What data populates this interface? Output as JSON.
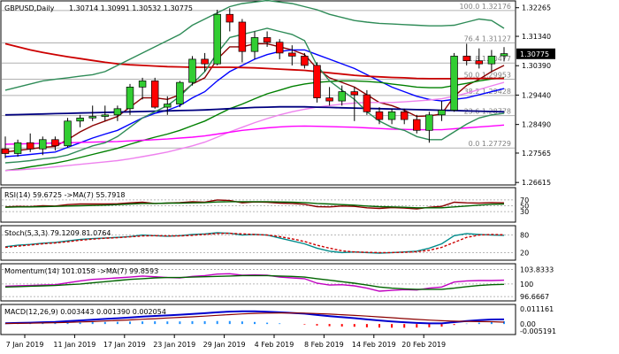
{
  "chart_data": {
    "type": "financial",
    "instrument": "GBPUSD,Daily",
    "ohlc_readout": "1.30714 1.30991 1.30532 1.30775",
    "price_axis_ticks": [
      "1.32265",
      "1.31340",
      "1.30390",
      "1.29440",
      "1.28490",
      "1.27565",
      "1.26615"
    ],
    "price_range": [
      1.2662,
      1.324
    ],
    "current_price": "1.30775",
    "fibonacci": [
      {
        "label": "100.0 1.32176",
        "price": 1.32176
      },
      {
        "label": "76.4 1.31127",
        "price": 1.31127
      },
      {
        "label": "61.8 1.30477",
        "price": 1.30477
      },
      {
        "label": "50.0 1.29953",
        "price": 1.29953
      },
      {
        "label": "38.2 1.29428",
        "price": 1.29428
      },
      {
        "label": "23.6 1.28778",
        "price": 1.28778
      },
      {
        "label": "0.0 1.27729",
        "price": 1.27729
      }
    ],
    "x_labels": [
      "7 Jan 2019",
      "11 Jan 2019",
      "17 Jan 2019",
      "23 Jan 2019",
      "29 Jan 2019",
      "4 Feb 2019",
      "8 Feb 2019",
      "14 Feb 2019",
      "20 Feb 2019"
    ],
    "candles": [
      {
        "o": 1.277,
        "h": 1.281,
        "l": 1.274,
        "c": 1.2755
      },
      {
        "o": 1.2755,
        "h": 1.28,
        "l": 1.2745,
        "c": 1.279
      },
      {
        "o": 1.279,
        "h": 1.282,
        "l": 1.276,
        "c": 1.277
      },
      {
        "o": 1.277,
        "h": 1.281,
        "l": 1.275,
        "c": 1.28
      },
      {
        "o": 1.28,
        "h": 1.281,
        "l": 1.2765,
        "c": 1.278
      },
      {
        "o": 1.278,
        "h": 1.287,
        "l": 1.2775,
        "c": 1.286
      },
      {
        "o": 1.286,
        "h": 1.288,
        "l": 1.284,
        "c": 1.287
      },
      {
        "o": 1.287,
        "h": 1.291,
        "l": 1.286,
        "c": 1.2875
      },
      {
        "o": 1.2875,
        "h": 1.291,
        "l": 1.286,
        "c": 1.288
      },
      {
        "o": 1.288,
        "h": 1.291,
        "l": 1.286,
        "c": 1.29
      },
      {
        "o": 1.29,
        "h": 1.298,
        "l": 1.288,
        "c": 1.297
      },
      {
        "o": 1.297,
        "h": 1.3,
        "l": 1.293,
        "c": 1.299
      },
      {
        "o": 1.299,
        "h": 1.3,
        "l": 1.29,
        "c": 1.2905
      },
      {
        "o": 1.2905,
        "h": 1.294,
        "l": 1.288,
        "c": 1.2915
      },
      {
        "o": 1.2915,
        "h": 1.299,
        "l": 1.2905,
        "c": 1.2985
      },
      {
        "o": 1.2985,
        "h": 1.307,
        "l": 1.2975,
        "c": 1.306
      },
      {
        "o": 1.306,
        "h": 1.308,
        "l": 1.302,
        "c": 1.3045
      },
      {
        "o": 1.3045,
        "h": 1.322,
        "l": 1.304,
        "c": 1.3205
      },
      {
        "o": 1.3205,
        "h": 1.3225,
        "l": 1.315,
        "c": 1.318
      },
      {
        "o": 1.318,
        "h": 1.319,
        "l": 1.305,
        "c": 1.3085
      },
      {
        "o": 1.3085,
        "h": 1.315,
        "l": 1.306,
        "c": 1.313
      },
      {
        "o": 1.313,
        "h": 1.315,
        "l": 1.31,
        "c": 1.3115
      },
      {
        "o": 1.3115,
        "h": 1.3125,
        "l": 1.306,
        "c": 1.308
      },
      {
        "o": 1.308,
        "h": 1.3105,
        "l": 1.304,
        "c": 1.307
      },
      {
        "o": 1.307,
        "h": 1.308,
        "l": 1.303,
        "c": 1.304
      },
      {
        "o": 1.304,
        "h": 1.305,
        "l": 1.292,
        "c": 1.2935
      },
      {
        "o": 1.2935,
        "h": 1.297,
        "l": 1.291,
        "c": 1.2925
      },
      {
        "o": 1.2925,
        "h": 1.2975,
        "l": 1.291,
        "c": 1.2955
      },
      {
        "o": 1.2955,
        "h": 1.297,
        "l": 1.286,
        "c": 1.2945
      },
      {
        "o": 1.2945,
        "h": 1.296,
        "l": 1.288,
        "c": 1.289
      },
      {
        "o": 1.289,
        "h": 1.2905,
        "l": 1.285,
        "c": 1.2865
      },
      {
        "o": 1.2865,
        "h": 1.29,
        "l": 1.285,
        "c": 1.289
      },
      {
        "o": 1.289,
        "h": 1.29,
        "l": 1.285,
        "c": 1.2865
      },
      {
        "o": 1.2865,
        "h": 1.288,
        "l": 1.282,
        "c": 1.283
      },
      {
        "o": 1.283,
        "h": 1.289,
        "l": 1.279,
        "c": 1.288
      },
      {
        "o": 1.288,
        "h": 1.2925,
        "l": 1.286,
        "c": 1.2895
      },
      {
        "o": 1.2895,
        "h": 1.308,
        "l": 1.289,
        "c": 1.307
      },
      {
        "o": 1.307,
        "h": 1.311,
        "l": 1.304,
        "c": 1.3055
      },
      {
        "o": 1.3055,
        "h": 1.3095,
        "l": 1.303,
        "c": 1.3045
      },
      {
        "o": 1.3045,
        "h": 1.309,
        "l": 1.302,
        "c": 1.307
      },
      {
        "o": 1.3071,
        "h": 1.3099,
        "l": 1.3053,
        "c": 1.3078
      }
    ],
    "overlays": [
      {
        "color": "#8b0000",
        "values": [
          1.276,
          1.2765,
          1.277,
          1.2775,
          1.2778,
          1.28,
          1.2825,
          1.2845,
          1.286,
          1.2875,
          1.2905,
          1.2935,
          1.2935,
          1.293,
          1.2945,
          1.298,
          1.3,
          1.306,
          1.31,
          1.31,
          1.311,
          1.311,
          1.31,
          1.309,
          1.3075,
          1.303,
          1.3,
          1.2985,
          1.297,
          1.2945,
          1.292,
          1.291,
          1.2895,
          1.2875,
          1.2877,
          1.2883,
          1.294,
          1.2975,
          1.2995,
          1.302,
          1.304
        ]
      },
      {
        "color": "#0000ff",
        "values": [
          1.2745,
          1.2748,
          1.2752,
          1.2756,
          1.276,
          1.2775,
          1.279,
          1.2805,
          1.2818,
          1.283,
          1.285,
          1.287,
          1.2885,
          1.2895,
          1.291,
          1.2935,
          1.2955,
          1.299,
          1.302,
          1.304,
          1.306,
          1.3075,
          1.3085,
          1.309,
          1.309,
          1.3075,
          1.306,
          1.3045,
          1.303,
          1.301,
          1.299,
          1.297,
          1.2955,
          1.294,
          1.293,
          1.2925,
          1.293,
          1.2935,
          1.2945,
          1.2955,
          1.2965
        ]
      },
      {
        "color": "#008000",
        "values": [
          1.27,
          1.2705,
          1.2712,
          1.2718,
          1.2724,
          1.2732,
          1.2742,
          1.2752,
          1.2762,
          1.2772,
          1.2785,
          1.2797,
          1.2808,
          1.2818,
          1.283,
          1.2845,
          1.286,
          1.288,
          1.29,
          1.2915,
          1.2932,
          1.2948,
          1.296,
          1.2972,
          1.298,
          1.2985,
          1.2988,
          1.299,
          1.299,
          1.2988,
          1.2985,
          1.298,
          1.2975,
          1.297,
          1.2968,
          1.2968,
          1.2975,
          1.2982,
          1.299,
          1.2996,
          1.3
        ]
      },
      {
        "color": "#ee82ee",
        "values": [
          1.27,
          1.2702,
          1.2705,
          1.2708,
          1.2712,
          1.2716,
          1.272,
          1.2724,
          1.2728,
          1.2732,
          1.2738,
          1.2745,
          1.2752,
          1.276,
          1.277,
          1.278,
          1.2792,
          1.2808,
          1.2825,
          1.284,
          1.2855,
          1.2868,
          1.288,
          1.289,
          1.2898,
          1.2905,
          1.291,
          1.2915,
          1.2918,
          1.292,
          1.292,
          1.292,
          1.2922,
          1.2925,
          1.2928,
          1.2932,
          1.294,
          1.295,
          1.2962,
          1.2974,
          1.2985
        ]
      },
      {
        "color": "#ff00ff",
        "values": [
          1.2785,
          1.2786,
          1.2787,
          1.2788,
          1.2789,
          1.279,
          1.2791,
          1.2792,
          1.2793,
          1.2794,
          1.2796,
          1.2798,
          1.28,
          1.2802,
          1.2805,
          1.2808,
          1.2812,
          1.2818,
          1.2824,
          1.283,
          1.2834,
          1.2838,
          1.2841,
          1.2843,
          1.2844,
          1.2843,
          1.2842,
          1.2841,
          1.284,
          1.2838,
          1.2836,
          1.2834,
          1.2833,
          1.2832,
          1.2832,
          1.2832,
          1.2835,
          1.2838,
          1.2841,
          1.2844,
          1.2847
        ]
      },
      {
        "color": "#cc0000",
        "values": [
          1.311,
          1.31,
          1.309,
          1.3082,
          1.3075,
          1.3068,
          1.3062,
          1.3056,
          1.305,
          1.3045,
          1.3042,
          1.304,
          1.3038,
          1.3036,
          1.3035,
          1.3034,
          1.3034,
          1.3034,
          1.3034,
          1.3033,
          1.3032,
          1.303,
          1.3028,
          1.3026,
          1.3024,
          1.302,
          1.3016,
          1.3012,
          1.3008,
          1.3005,
          1.3003,
          1.3001,
          1.3,
          1.2998,
          1.2997,
          1.2997,
          1.2997,
          1.2998,
          1.2998,
          1.2998,
          1.2998
        ]
      },
      {
        "color": "#000080",
        "values": [
          1.288,
          1.2881,
          1.2882,
          1.2883,
          1.2884,
          1.2885,
          1.2886,
          1.2887,
          1.2888,
          1.2889,
          1.289,
          1.2891,
          1.2892,
          1.2893,
          1.2894,
          1.2895,
          1.2896,
          1.2898,
          1.29,
          1.2902,
          1.2904,
          1.2905,
          1.2906,
          1.2906,
          1.2906,
          1.2905,
          1.2904,
          1.2903,
          1.2902,
          1.2901,
          1.29,
          1.2899,
          1.2898,
          1.2897,
          1.2896,
          1.2895,
          1.2894,
          1.2893,
          1.2892,
          1.2891,
          1.289
        ]
      },
      {
        "color": "#2e8b57",
        "values": [
          1.2725,
          1.2728,
          1.2732,
          1.2738,
          1.2742,
          1.275,
          1.2765,
          1.278,
          1.279,
          1.281,
          1.284,
          1.287,
          1.289,
          1.291,
          1.294,
          1.298,
          1.302,
          1.308,
          1.313,
          1.314,
          1.315,
          1.316,
          1.315,
          1.314,
          1.312,
          1.304,
          1.299,
          1.296,
          1.293,
          1.289,
          1.286,
          1.284,
          1.283,
          1.281,
          1.28,
          1.28,
          1.2825,
          1.285,
          1.287,
          1.288,
          1.2885
        ]
      },
      {
        "color": "#2e8b57",
        "values": [
          1.296,
          1.297,
          1.298,
          1.299,
          1.2995,
          1.3,
          1.3005,
          1.301,
          1.302,
          1.304,
          1.306,
          1.308,
          1.31,
          1.312,
          1.314,
          1.317,
          1.319,
          1.321,
          1.323,
          1.324,
          1.3245,
          1.325,
          1.3245,
          1.324,
          1.323,
          1.322,
          1.3205,
          1.3195,
          1.3185,
          1.318,
          1.3176,
          1.3174,
          1.3172,
          1.317,
          1.3168,
          1.3168,
          1.317,
          1.318,
          1.319,
          1.3185,
          1.316
        ]
      }
    ],
    "rsi": {
      "label": "RSI(14) 59.6725  ->MA(7) 55.7918",
      "ticks": [
        "70",
        "50",
        "30"
      ],
      "range": [
        0,
        100
      ],
      "series": [
        {
          "color": "#8b0000",
          "values": [
            46,
            48,
            47,
            50,
            49,
            54,
            56,
            56,
            56,
            57,
            60,
            62,
            58,
            59,
            61,
            64,
            62,
            70,
            68,
            60,
            63,
            62,
            59,
            58,
            55,
            47,
            46,
            49,
            48,
            43,
            41,
            44,
            42,
            39,
            45,
            48,
            62,
            60,
            59,
            61,
            60
          ]
        },
        {
          "color": "#006400",
          "values": [
            45,
            46,
            46,
            47,
            48,
            49,
            50,
            51,
            52,
            54,
            56,
            58,
            58,
            59,
            59,
            60,
            61,
            63,
            64,
            64,
            64,
            64,
            63,
            62,
            61,
            58,
            56,
            54,
            52,
            49,
            47,
            46,
            45,
            43,
            43,
            43,
            46,
            49,
            52,
            55,
            56
          ]
        }
      ]
    },
    "stoch": {
      "label": "Stoch(5,3,3) 79.1209 81.0764",
      "ticks": [
        "80",
        "20"
      ],
      "range": [
        0,
        100
      ],
      "series": [
        {
          "color": "#008b8b",
          "values": [
            40,
            45,
            48,
            52,
            55,
            60,
            65,
            68,
            70,
            72,
            75,
            80,
            78,
            76,
            78,
            82,
            84,
            88,
            86,
            80,
            82,
            80,
            70,
            60,
            50,
            35,
            25,
            20,
            22,
            20,
            18,
            20,
            22,
            25,
            35,
            50,
            78,
            85,
            82,
            80,
            79
          ]
        },
        {
          "color": "#cc0000",
          "dash": true,
          "values": [
            38,
            42,
            46,
            50,
            53,
            57,
            62,
            66,
            69,
            71,
            74,
            77,
            78,
            77,
            77,
            79,
            82,
            85,
            86,
            84,
            82,
            80,
            75,
            67,
            58,
            45,
            35,
            26,
            22,
            21,
            20,
            20,
            21,
            23,
            28,
            38,
            55,
            72,
            80,
            82,
            81
          ]
        }
      ]
    },
    "momentum": {
      "label": "Momentum(14) 101.0158  ->MA(7) 99.8593",
      "ticks": [
        "103.8333",
        "100",
        "96.6667"
      ],
      "range": [
        96.0,
        104.4
      ],
      "series": [
        {
          "color": "#c000c0",
          "values": [
            99.4,
            99.5,
            99.6,
            99.7,
            99.8,
            100.3,
            100.8,
            101.2,
            101.4,
            101.6,
            101.8,
            102.1,
            101.9,
            101.7,
            101.6,
            102.0,
            102.2,
            102.6,
            102.7,
            102.3,
            102.4,
            102.3,
            101.8,
            101.6,
            101.4,
            100.2,
            99.7,
            99.8,
            99.5,
            98.9,
            98.1,
            98.3,
            98.5,
            98.4,
            98.9,
            99.2,
            100.5,
            100.8,
            100.9,
            100.9,
            101.0
          ]
        },
        {
          "color": "#006400",
          "values": [
            99.2,
            99.3,
            99.4,
            99.5,
            99.6,
            99.8,
            100.0,
            100.3,
            100.6,
            100.9,
            101.2,
            101.4,
            101.6,
            101.7,
            101.7,
            101.8,
            101.9,
            102.0,
            102.1,
            102.2,
            102.2,
            102.2,
            102.1,
            102.0,
            101.8,
            101.4,
            101.0,
            100.6,
            100.2,
            99.7,
            99.2,
            98.9,
            98.7,
            98.6,
            98.6,
            98.6,
            98.9,
            99.3,
            99.6,
            99.8,
            99.9
          ]
        }
      ]
    },
    "macd": {
      "label": "MACD(12,26,9) 0.003443 0.001390 0.002054",
      "ticks": [
        "0.011161",
        "0.00",
        "-0.005191"
      ],
      "range": [
        -0.0064,
        0.0124
      ],
      "main": [
        0.0006,
        0.0008,
        0.001,
        0.0013,
        0.0016,
        0.0021,
        0.0026,
        0.0032,
        0.0037,
        0.0042,
        0.0048,
        0.0054,
        0.0059,
        0.0063,
        0.0068,
        0.0074,
        0.0079,
        0.0086,
        0.0091,
        0.0093,
        0.0093,
        0.009,
        0.0086,
        0.0081,
        0.0076,
        0.0066,
        0.0057,
        0.005,
        0.0043,
        0.0034,
        0.0026,
        0.0019,
        0.0013,
        0.0008,
        0.0005,
        0.0005,
        0.0014,
        0.0022,
        0.0028,
        0.0033,
        0.0034
      ],
      "signal": [
        0.0004,
        0.0005,
        0.0006,
        0.0008,
        0.0009,
        0.0012,
        0.0015,
        0.0018,
        0.0022,
        0.0026,
        0.003,
        0.0035,
        0.0039,
        0.0044,
        0.0049,
        0.0053,
        0.0058,
        0.0064,
        0.0069,
        0.0074,
        0.0078,
        0.008,
        0.0081,
        0.0081,
        0.008,
        0.0077,
        0.0073,
        0.0068,
        0.0063,
        0.0058,
        0.0052,
        0.0046,
        0.004,
        0.0034,
        0.0029,
        0.0024,
        0.0021,
        0.0019,
        0.0018,
        0.0017,
        0.0014
      ],
      "hist": [
        0.0002,
        0.0003,
        0.0004,
        0.0005,
        0.0007,
        0.0009,
        0.0011,
        0.0014,
        0.0015,
        0.0016,
        0.0018,
        0.0019,
        0.002,
        0.0019,
        0.0019,
        0.0021,
        0.0021,
        0.0022,
        0.0022,
        0.0019,
        0.0015,
        0.001,
        0.0005,
        0.0,
        -0.0004,
        -0.0011,
        -0.0016,
        -0.0018,
        -0.002,
        -0.0024,
        -0.0026,
        -0.0027,
        -0.0027,
        -0.0026,
        -0.0024,
        -0.0019,
        -0.0007,
        0.0003,
        0.001,
        0.0016,
        0.002
      ]
    }
  }
}
